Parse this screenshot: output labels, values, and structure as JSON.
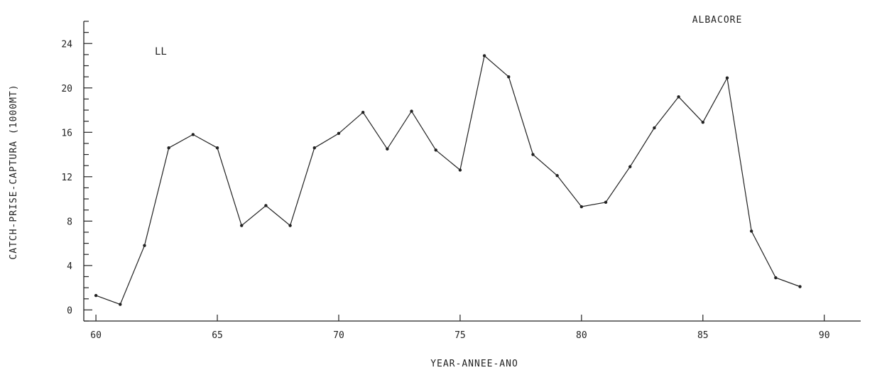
{
  "chart_data": {
    "type": "line",
    "title": "ALBACORE",
    "annotation": "LL",
    "xlabel": "YEAR-ANNEE-ANO",
    "ylabel": "CATCH-PRISE-CAPTURA (1000MT)",
    "xlim": [
      59.5,
      91.5
    ],
    "ylim": [
      -1,
      26
    ],
    "x_ticks": [
      60,
      65,
      70,
      75,
      80,
      85,
      90
    ],
    "x_tick_labels": [
      "60",
      "65",
      "70",
      "75",
      "80",
      "85",
      "90"
    ],
    "y_ticks": [
      0,
      4,
      8,
      12,
      16,
      20,
      24
    ],
    "y_tick_labels": [
      "0",
      "4",
      "8",
      "12",
      "16",
      "20",
      "24"
    ],
    "grid": false,
    "series": [
      {
        "x": [
          60,
          61,
          62,
          63,
          64,
          65,
          66,
          67,
          68,
          69,
          70,
          71,
          72,
          73,
          74,
          75,
          76,
          77,
          78,
          79,
          80,
          81,
          82,
          83,
          84,
          85,
          86,
          87,
          88,
          89
        ],
        "values": [
          1.3,
          0.5,
          5.8,
          14.6,
          15.8,
          14.6,
          7.6,
          9.4,
          7.6,
          14.6,
          15.9,
          17.8,
          14.5,
          17.9,
          14.4,
          12.6,
          22.9,
          21.0,
          14.0,
          12.1,
          9.3,
          9.7,
          12.9,
          16.4,
          19.2,
          16.9,
          20.9,
          7.1,
          2.9,
          2.1
        ]
      }
    ],
    "color": "#222222"
  }
}
